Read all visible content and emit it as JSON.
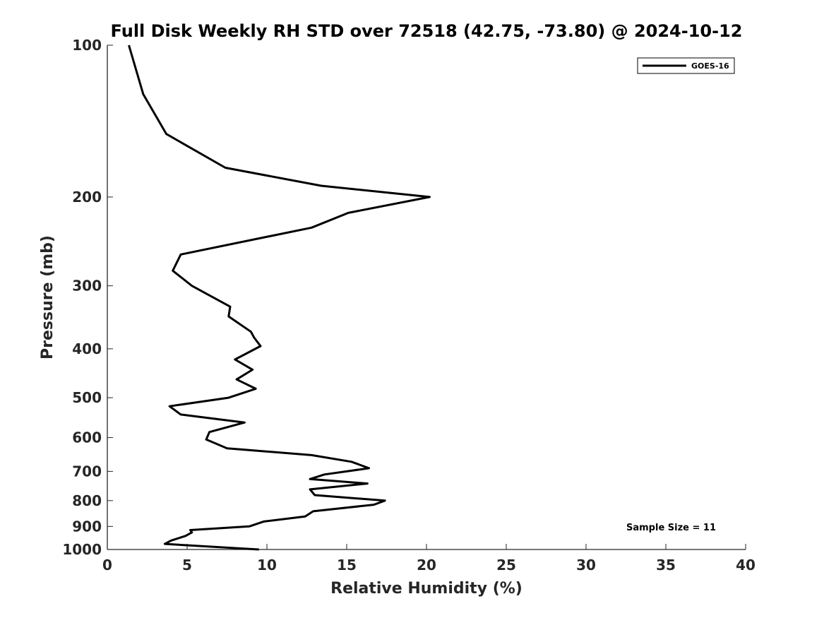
{
  "chart_data": {
    "type": "line",
    "title": "Full Disk Weekly RH STD over 72518 (42.75, -73.80) @ 2024-10-12",
    "xlabel": "Relative Humidity (%)",
    "ylabel": "Pressure (mb)",
    "xlim": [
      0,
      40
    ],
    "ylim": [
      100,
      1000
    ],
    "y_scale": "log",
    "y_reversed": true,
    "x_ticks": [
      0,
      5,
      10,
      15,
      20,
      25,
      30,
      35,
      40
    ],
    "y_ticks": [
      100,
      200,
      300,
      400,
      500,
      600,
      700,
      800,
      900,
      1000
    ],
    "grid": false,
    "legend_position": "top-right",
    "annotation": "Sample Size = 11",
    "series": [
      {
        "name": "GOES-16",
        "color": "#000000",
        "points": [
          [
            1.35,
            100
          ],
          [
            2.25,
            125
          ],
          [
            3.7,
            150
          ],
          [
            7.4,
            175
          ],
          [
            13.4,
            190
          ],
          [
            20.2,
            200
          ],
          [
            15.1,
            215
          ],
          [
            12.8,
            230
          ],
          [
            4.6,
            260
          ],
          [
            4.1,
            280
          ],
          [
            5.3,
            300
          ],
          [
            7.7,
            330
          ],
          [
            7.6,
            345
          ],
          [
            9.0,
            370
          ],
          [
            9.2,
            380
          ],
          [
            9.6,
            395
          ],
          [
            8.0,
            420
          ],
          [
            9.1,
            440
          ],
          [
            8.1,
            460
          ],
          [
            9.3,
            480
          ],
          [
            7.6,
            500
          ],
          [
            3.9,
            520
          ],
          [
            4.6,
            540
          ],
          [
            8.6,
            560
          ],
          [
            6.4,
            585
          ],
          [
            6.2,
            605
          ],
          [
            7.5,
            630
          ],
          [
            12.8,
            650
          ],
          [
            15.3,
            670
          ],
          [
            16.4,
            690
          ],
          [
            13.6,
            710
          ],
          [
            12.7,
            725
          ],
          [
            16.3,
            740
          ],
          [
            12.7,
            760
          ],
          [
            13.0,
            780
          ],
          [
            17.4,
            800
          ],
          [
            16.7,
            815
          ],
          [
            12.9,
            840
          ],
          [
            12.4,
            860
          ],
          [
            9.8,
            880
          ],
          [
            8.9,
            900
          ],
          [
            5.2,
            915
          ],
          [
            5.3,
            925
          ],
          [
            4.9,
            940
          ],
          [
            4.0,
            960
          ],
          [
            3.6,
            975
          ],
          [
            9.5,
            1000
          ]
        ]
      }
    ]
  }
}
